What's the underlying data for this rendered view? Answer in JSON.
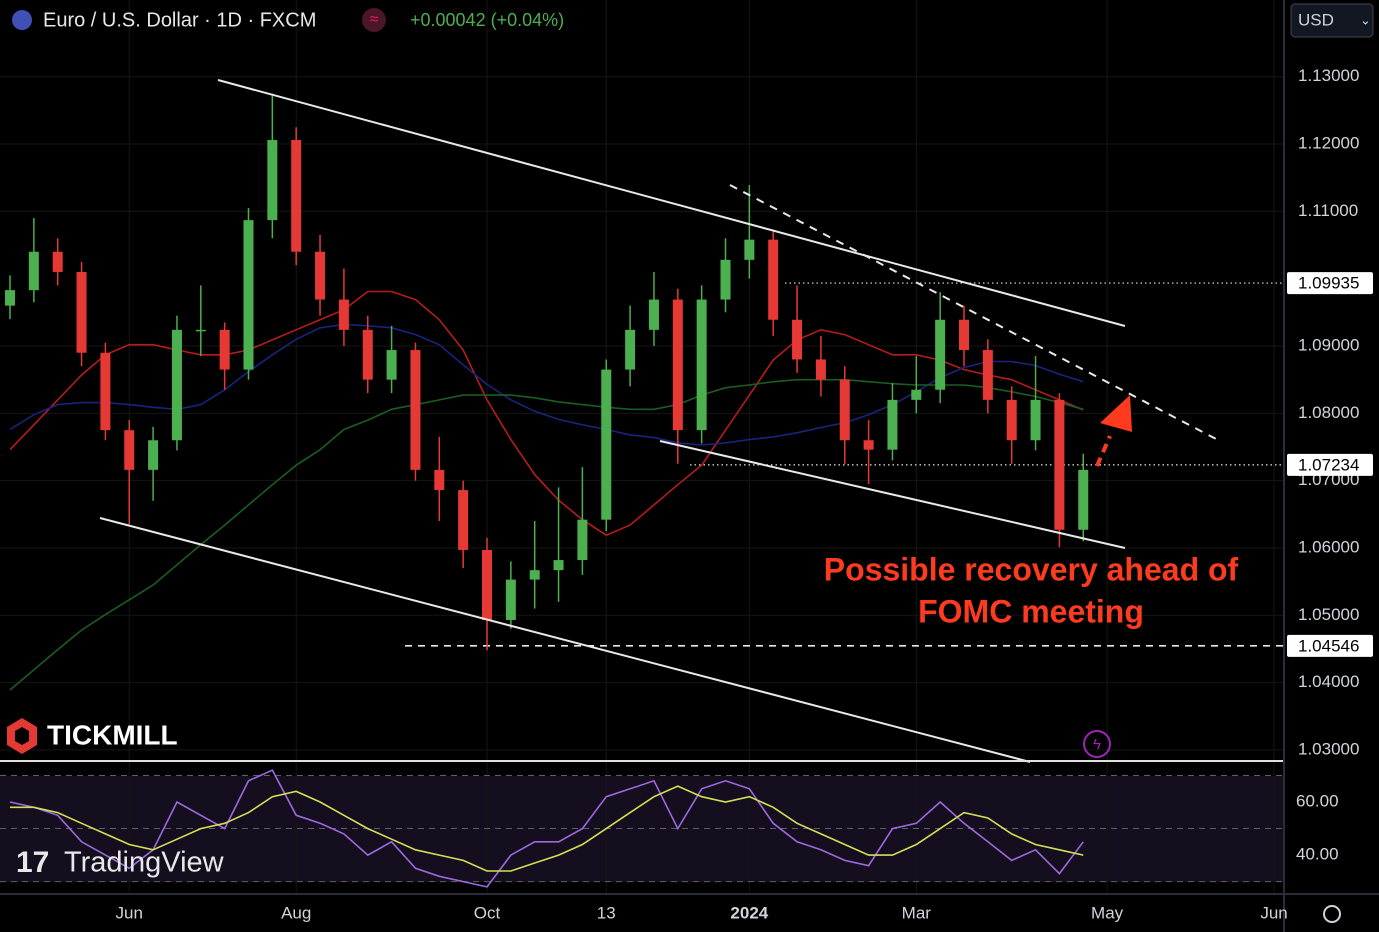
{
  "header": {
    "symbol": "Euro / U.S. Dollar · 1D · FXCM",
    "change": "+0.00042 (+0.04%)",
    "currency": "USD"
  },
  "branding": {
    "broker": "TICKMILL",
    "platform": "TradingView"
  },
  "chart_data": [
    {
      "type": "candlestick",
      "annotation": [
        "Possible recovery ahead of",
        "FOMC meeting"
      ],
      "categories": [
        null,
        null,
        null,
        null,
        null,
        "Jun",
        null,
        null,
        null,
        null,
        null,
        null,
        "Aug",
        null,
        null,
        null,
        null,
        null,
        null,
        null,
        "Oct",
        null,
        null,
        null,
        null,
        "13",
        null,
        null,
        null,
        null,
        null,
        "2024",
        null,
        null,
        null,
        null,
        null,
        null,
        "Mar",
        null,
        null,
        null,
        null,
        null,
        null,
        null,
        "May",
        null,
        null,
        null,
        null,
        null,
        null,
        "Jun"
      ],
      "open": [
        1.096,
        1.0983,
        1.104,
        1.101,
        1.089,
        1.0775,
        1.0716,
        1.076,
        1.0924,
        1.0924,
        1.0865,
        1.1087,
        1.1206,
        1.104,
        1.0969,
        1.0924,
        1.085,
        1.0894,
        1.0716,
        1.0686,
        1.0597,
        1.0493,
        1.0553,
        1.0567,
        1.0582,
        1.0642,
        1.0865,
        1.0924,
        1.0969,
        1.0775,
        1.0969,
        1.1028,
        1.1058,
        1.0939,
        1.088,
        1.085,
        1.076,
        1.0746,
        1.082,
        1.0835,
        1.0939,
        1.0894,
        1.082,
        1.076,
        1.082,
        1.0627,
        null,
        null,
        null,
        null,
        null,
        null,
        null,
        null
      ],
      "high": [
        1.1005,
        1.109,
        1.106,
        1.1025,
        1.0905,
        1.079,
        1.078,
        1.0945,
        1.099,
        1.0935,
        1.1105,
        1.1275,
        1.1225,
        1.1065,
        1.1015,
        1.0945,
        1.093,
        1.0905,
        1.0765,
        1.07,
        1.0615,
        1.058,
        1.064,
        1.069,
        1.072,
        1.088,
        1.096,
        1.101,
        1.0985,
        1.099,
        1.106,
        1.1139,
        1.107,
        1.099,
        1.0915,
        1.087,
        1.079,
        1.0845,
        1.0885,
        1.098,
        1.096,
        1.091,
        1.084,
        1.0885,
        1.083,
        1.074,
        null,
        null,
        null,
        null,
        null,
        null,
        null,
        null
      ],
      "low": [
        1.094,
        1.0965,
        1.099,
        1.087,
        1.076,
        1.0635,
        1.067,
        1.0745,
        1.0885,
        1.0835,
        1.085,
        1.106,
        1.102,
        1.0945,
        1.09,
        1.083,
        1.083,
        1.07,
        1.064,
        1.057,
        1.0448,
        1.048,
        1.051,
        1.052,
        1.056,
        1.0625,
        1.084,
        1.09,
        1.0725,
        1.0755,
        1.095,
        1.1,
        1.0915,
        1.086,
        1.0825,
        1.0725,
        1.0695,
        1.073,
        1.08,
        1.0815,
        1.087,
        1.08,
        1.0725,
        1.0745,
        1.0601,
        1.061,
        null,
        null,
        null,
        null,
        null,
        null,
        null,
        null
      ],
      "close": [
        1.0983,
        1.104,
        1.101,
        1.089,
        1.0775,
        1.0716,
        1.076,
        1.0924,
        1.0924,
        1.0865,
        1.1087,
        1.1206,
        1.104,
        1.0969,
        1.0924,
        1.085,
        1.0894,
        1.0716,
        1.0686,
        1.0597,
        1.0493,
        1.0553,
        1.0567,
        1.0582,
        1.0642,
        1.0865,
        1.0924,
        1.0969,
        1.0775,
        1.0969,
        1.1028,
        1.1058,
        1.0939,
        1.088,
        1.085,
        1.076,
        1.0746,
        1.082,
        1.0835,
        1.0939,
        1.0894,
        1.082,
        1.076,
        1.082,
        1.0627,
        1.0716,
        null,
        null,
        null,
        null,
        null,
        null,
        null,
        null
      ],
      "up_color": "#4caf50",
      "down_color": "#e53935",
      "series": [
        {
          "color": "#b71c1c",
          "values": [
            1.0746,
            1.0783,
            1.082,
            1.0857,
            1.0887,
            1.0902,
            1.0902,
            1.0894,
            1.0887,
            1.0887,
            1.0894,
            1.0909,
            1.0924,
            1.0939,
            1.0954,
            1.0981,
            1.0981,
            1.0969,
            1.0939,
            1.0894,
            1.082,
            1.0761,
            1.0709,
            1.0671,
            1.0642,
            1.0619,
            1.0634,
            1.0664,
            1.0694,
            1.0723,
            1.0775,
            1.0827,
            1.0879,
            1.0909,
            1.0924,
            1.0917,
            1.0902,
            1.0887,
            1.0887,
            1.0879,
            1.0865,
            1.0857,
            1.085,
            1.0835,
            1.082,
            1.0805,
            null,
            null,
            null,
            null,
            null,
            null,
            null,
            null
          ]
        },
        {
          "color": "#1a237e",
          "values": [
            1.0776,
            1.0798,
            1.0813,
            1.0816,
            1.0816,
            1.0813,
            1.0809,
            1.0806,
            1.0813,
            1.0835,
            1.0862,
            1.0887,
            1.091,
            1.0927,
            1.0932,
            1.093,
            1.0927,
            1.0917,
            1.0902,
            1.0872,
            1.0843,
            1.082,
            1.0803,
            1.0791,
            1.0783,
            1.0776,
            1.0768,
            1.0764,
            1.0756,
            1.0753,
            1.0756,
            1.0761,
            1.0765,
            1.0771,
            1.0779,
            1.0786,
            1.0798,
            1.0813,
            1.0832,
            1.0853,
            1.0868,
            1.0877,
            1.0877,
            1.0871,
            1.0858,
            1.0847,
            null,
            null,
            null,
            null,
            null,
            null,
            null,
            null
          ]
        },
        {
          "color": "#1b5e20",
          "values": [
            1.0389,
            1.0419,
            1.0449,
            1.0478,
            1.0501,
            1.0523,
            1.0545,
            1.0575,
            1.0605,
            1.0634,
            1.0664,
            1.0694,
            1.0723,
            1.0746,
            1.0776,
            1.079,
            1.0806,
            1.0813,
            1.082,
            1.0827,
            1.0827,
            1.0827,
            1.0823,
            1.0817,
            1.0813,
            1.0809,
            1.0806,
            1.0806,
            1.0813,
            1.0827,
            1.0838,
            1.0842,
            1.0847,
            1.085,
            1.085,
            1.085,
            1.0847,
            1.0844,
            1.0842,
            1.0842,
            1.0842,
            1.0838,
            1.0832,
            1.0825,
            1.0816,
            1.0806,
            null,
            null,
            null,
            null,
            null,
            null,
            null,
            null
          ]
        }
      ],
      "ylim": [
        1.0285,
        1.1414
      ],
      "yticks": [
        {
          "value": 1.13,
          "label": "1.13000"
        },
        {
          "value": 1.12,
          "label": "1.12000"
        },
        {
          "value": 1.11,
          "label": "1.11000"
        },
        {
          "value": 1.09,
          "label": "1.09000"
        },
        {
          "value": 1.08,
          "label": "1.08000"
        },
        {
          "value": 1.07,
          "label": "1.07000"
        },
        {
          "value": 1.06,
          "label": "1.06000"
        },
        {
          "value": 1.05,
          "label": "1.05000"
        },
        {
          "value": 1.04,
          "label": "1.04000"
        },
        {
          "value": 1.03,
          "label": "1.03000"
        }
      ],
      "levels": [
        1.09935,
        1.07234,
        1.04546
      ],
      "level_dash": [
        "dotted",
        "dotted",
        "dashed"
      ],
      "grid": true
    },
    {
      "type": "line",
      "series": [
        {
          "color": "#9c6ade",
          "values": [
            60,
            58,
            55,
            45,
            40,
            35,
            42,
            60,
            55,
            50,
            68,
            72,
            55,
            52,
            48,
            40,
            45,
            35,
            32,
            30,
            28,
            40,
            45,
            45,
            50,
            62,
            65,
            68,
            50,
            65,
            68,
            65,
            52,
            45,
            42,
            38,
            36,
            50,
            52,
            60,
            52,
            45,
            38,
            42,
            33,
            45,
            null,
            null,
            null,
            null,
            null,
            null,
            null,
            null
          ]
        },
        {
          "color": "#d4e157",
          "values": [
            58,
            58,
            56,
            52,
            48,
            44,
            42,
            46,
            50,
            52,
            56,
            62,
            64,
            60,
            55,
            50,
            46,
            42,
            40,
            38,
            34,
            34,
            37,
            40,
            44,
            50,
            56,
            62,
            66,
            62,
            60,
            62,
            58,
            52,
            48,
            44,
            40,
            40,
            44,
            50,
            56,
            54,
            48,
            44,
            42,
            40,
            null,
            null,
            null,
            null,
            null,
            null,
            null,
            null
          ]
        }
      ],
      "ylim": [
        25.7,
        75.1
      ],
      "yticks": [
        {
          "value": 60,
          "label": "60.00"
        },
        {
          "value": 40,
          "label": "40.00"
        }
      ],
      "hlines": [
        70,
        50,
        30
      ]
    }
  ]
}
